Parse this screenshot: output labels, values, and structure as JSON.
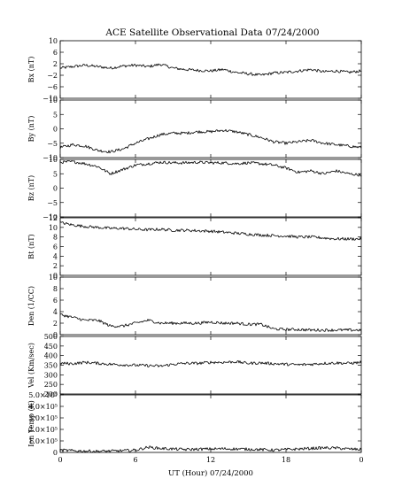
{
  "chart_data": {
    "type": "line",
    "title": "ACE Satellite Observational Data   07/24/2000",
    "xlabel": "UT (Hour)   07/24/2000",
    "x_ticks": [
      "0",
      "6",
      "12",
      "18",
      "0"
    ],
    "xlim": [
      0,
      24
    ],
    "panels": [
      {
        "id": "bx",
        "ylabel": "Bx (nT)",
        "ylim": [
          -10,
          10
        ],
        "y_ticks": [
          10,
          6,
          2,
          -2,
          -6,
          -10
        ],
        "y_tick_labels": [
          "10",
          "6",
          "2",
          "−2",
          "−6",
          "−10"
        ],
        "series": [
          {
            "x": [
              0,
              1,
              2,
              3,
              4,
              5,
              6,
              7,
              8,
              9,
              10,
              11,
              12,
              13,
              14,
              15,
              16,
              17,
              18,
              19,
              20,
              21,
              22,
              23,
              24
            ],
            "values": [
              0.5,
              1.0,
              1.5,
              1.0,
              0.5,
              1.2,
              1.5,
              1.0,
              1.8,
              0.5,
              0.0,
              -0.3,
              -0.5,
              0.0,
              -1.0,
              -1.5,
              -2.0,
              -1.2,
              -1.0,
              -0.5,
              0.0,
              -0.8,
              -0.5,
              -1.0,
              -0.5
            ]
          }
        ]
      },
      {
        "id": "by",
        "ylabel": "By (nT)",
        "ylim": [
          -10,
          10
        ],
        "y_ticks": [
          10,
          5,
          0,
          -5,
          -10
        ],
        "y_tick_labels": [
          "10",
          "5",
          "0",
          "−5",
          "−10"
        ],
        "series": [
          {
            "x": [
              0,
              1,
              2,
              3,
              4,
              5,
              6,
              7,
              8,
              9,
              10,
              11,
              12,
              13,
              14,
              15,
              16,
              17,
              18,
              19,
              20,
              21,
              22,
              23,
              24
            ],
            "values": [
              -6.5,
              -5.5,
              -6.0,
              -7.5,
              -8.0,
              -7.0,
              -5.0,
              -3.5,
              -2.0,
              -1.5,
              -1.5,
              -1.0,
              -1.0,
              -0.5,
              -1.0,
              -2.0,
              -3.0,
              -4.5,
              -5.0,
              -4.5,
              -4.0,
              -5.0,
              -5.5,
              -6.0,
              -6.5
            ]
          }
        ]
      },
      {
        "id": "bz",
        "ylabel": "Bz (nT)",
        "ylim": [
          -10,
          10
        ],
        "y_ticks": [
          10,
          5,
          0,
          -5,
          -10
        ],
        "y_tick_labels": [
          "10",
          "5",
          "0",
          "−5",
          "−10"
        ],
        "series": [
          {
            "x": [
              0,
              1,
              2,
              3,
              4,
              5,
              6,
              7,
              8,
              9,
              10,
              11,
              12,
              13,
              14,
              15,
              16,
              17,
              18,
              19,
              20,
              21,
              22,
              23,
              24
            ],
            "values": [
              9.0,
              9.2,
              8.5,
              7.5,
              5.0,
              6.5,
              8.0,
              8.5,
              9.0,
              8.8,
              8.8,
              9.0,
              8.8,
              8.8,
              8.5,
              8.8,
              8.5,
              8.0,
              7.0,
              5.5,
              6.0,
              5.0,
              6.0,
              5.0,
              4.5
            ]
          }
        ]
      },
      {
        "id": "bt",
        "ylabel": "Bt (nT)",
        "ylim": [
          0,
          12
        ],
        "y_ticks": [
          12,
          10,
          8,
          6,
          4,
          2,
          0
        ],
        "y_tick_labels": [
          "12",
          "10",
          "8",
          "6",
          "4",
          "2",
          "0"
        ],
        "series": [
          {
            "x": [
              0,
              1,
              2,
              3,
              4,
              5,
              6,
              7,
              8,
              9,
              10,
              11,
              12,
              13,
              14,
              15,
              16,
              17,
              18,
              19,
              20,
              21,
              22,
              23,
              24
            ],
            "values": [
              11.0,
              10.5,
              10.2,
              10.0,
              9.8,
              9.8,
              9.6,
              9.5,
              9.6,
              9.4,
              9.4,
              9.3,
              9.2,
              9.0,
              8.8,
              8.6,
              8.4,
              8.3,
              8.2,
              8.0,
              8.0,
              7.8,
              7.6,
              7.6,
              7.6
            ]
          }
        ]
      },
      {
        "id": "den",
        "ylabel": "Den (1/CC)",
        "ylim": [
          0,
          10
        ],
        "y_ticks": [
          10,
          8,
          6,
          4,
          2,
          0
        ],
        "y_tick_labels": [
          "10",
          "8",
          "6",
          "4",
          "2",
          "0"
        ],
        "series": [
          {
            "x": [
              0,
              1,
              2,
              3,
              4,
              5,
              6,
              7,
              8,
              9,
              10,
              11,
              12,
              13,
              14,
              15,
              16,
              17,
              18,
              19,
              20,
              21,
              22,
              23,
              24
            ],
            "values": [
              3.5,
              3.0,
              2.5,
              2.5,
              1.5,
              1.5,
              2.0,
              2.5,
              2.0,
              2.0,
              2.0,
              2.0,
              2.2,
              2.0,
              2.0,
              1.8,
              1.8,
              1.0,
              0.9,
              0.9,
              0.8,
              0.8,
              0.8,
              0.8,
              0.8
            ]
          }
        ]
      },
      {
        "id": "vel",
        "ylabel": "Vel (Km/sec)",
        "ylim": [
          200,
          500
        ],
        "y_ticks": [
          500,
          450,
          400,
          350,
          300,
          250,
          200
        ],
        "y_tick_labels": [
          "500",
          "450",
          "400",
          "350",
          "300",
          "250",
          "200"
        ],
        "series": [
          {
            "x": [
              0,
              1,
              2,
              3,
              4,
              5,
              6,
              7,
              8,
              9,
              10,
              11,
              12,
              13,
              14,
              15,
              16,
              17,
              18,
              19,
              20,
              21,
              22,
              23,
              24
            ],
            "values": [
              360,
              358,
              365,
              360,
              355,
              352,
              350,
              348,
              345,
              355,
              360,
              360,
              365,
              365,
              368,
              360,
              362,
              358,
              355,
              352,
              355,
              360,
              362,
              360,
              365
            ]
          }
        ]
      },
      {
        "id": "temp",
        "ylabel": "Ion Temp (K)",
        "ylim": [
          0,
          500000
        ],
        "y_ticks": [
          500000,
          400000,
          300000,
          200000,
          100000,
          0
        ],
        "y_tick_labels": [
          "5.0×10⁵",
          "4.0×10⁵",
          "3.0×10⁵",
          "2.0×10⁵",
          "1.0×10⁵",
          "0"
        ],
        "series": [
          {
            "x": [
              0,
              1,
              2,
              3,
              4,
              5,
              6,
              7,
              8,
              9,
              10,
              11,
              12,
              13,
              14,
              15,
              16,
              17,
              18,
              19,
              20,
              21,
              22,
              23,
              24
            ],
            "values": [
              20000,
              15000,
              12000,
              10000,
              12000,
              15000,
              20000,
              45000,
              35000,
              30000,
              25000,
              28000,
              30000,
              32000,
              30000,
              28000,
              25000,
              20000,
              25000,
              30000,
              35000,
              40000,
              38000,
              30000,
              25000
            ]
          }
        ]
      }
    ]
  }
}
